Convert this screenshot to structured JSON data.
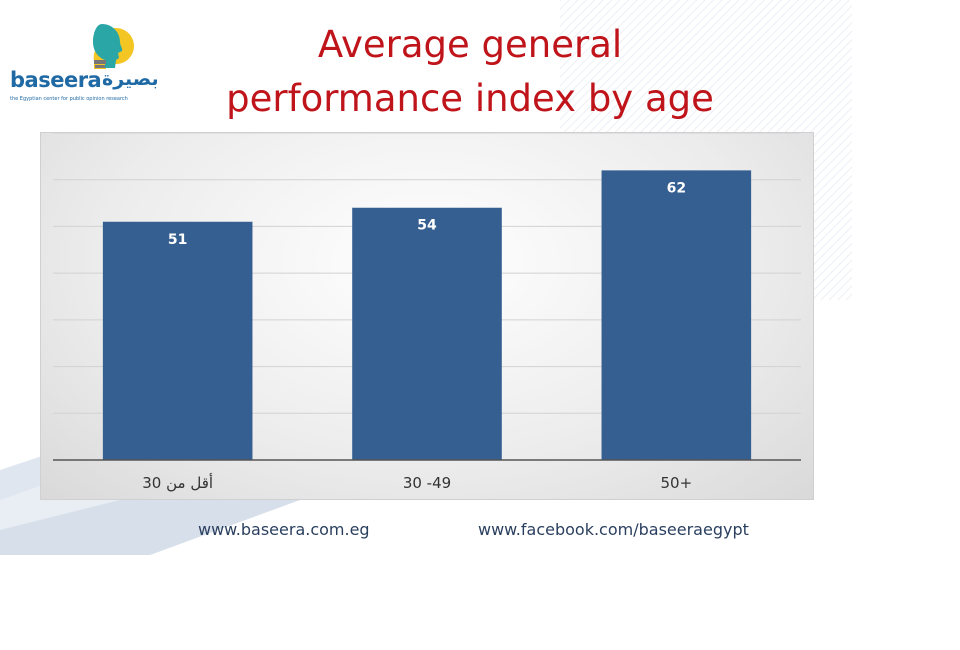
{
  "brand": {
    "name_latin": "baseera",
    "name_arabic": "بصيرة",
    "tagline": "the Egyptian center for public opinion research"
  },
  "title_line1": "Average general",
  "title_line2": "performance index by age",
  "footer": {
    "website": "www.baseera.com.eg",
    "facebook": "www.facebook.com/baseeraegypt"
  },
  "colors": {
    "bar": "#365f91",
    "title": "#c0141b"
  },
  "chart_data": {
    "type": "bar",
    "title": "Average general performance index by age",
    "categories": [
      "أقل من 30",
      "30 -49",
      "50+"
    ],
    "values": [
      51,
      54,
      62
    ],
    "xlabel": "",
    "ylabel": "",
    "ylim": [
      0,
      70
    ],
    "grid": true,
    "legend": "none",
    "data_labels": true
  }
}
